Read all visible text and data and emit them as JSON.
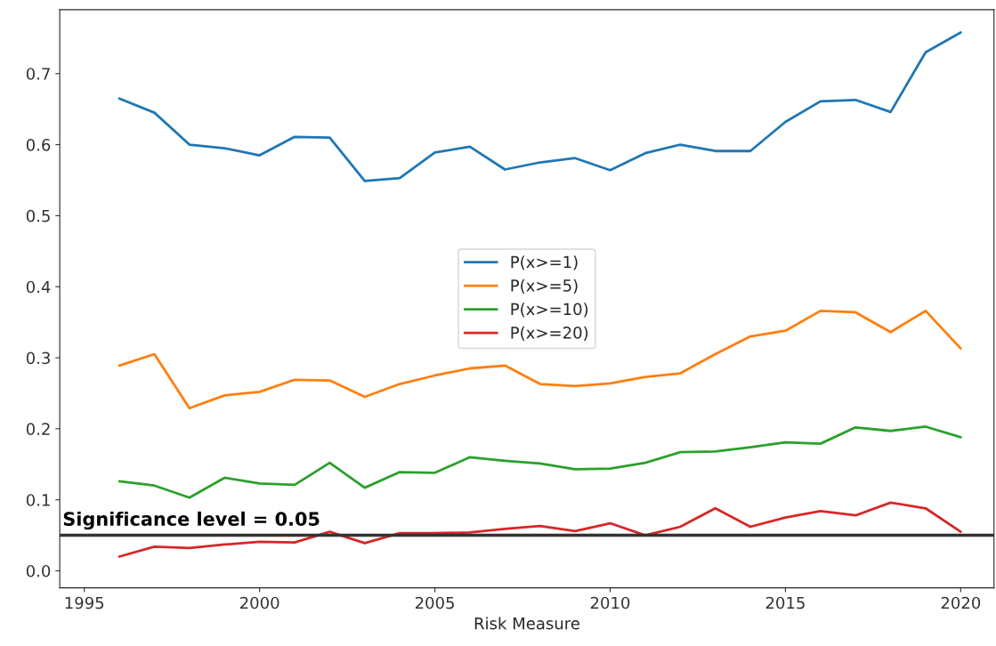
{
  "chart_data": {
    "type": "line",
    "xlabel": "Risk Measure",
    "x": [
      1996,
      1997,
      1998,
      1999,
      2000,
      2001,
      2002,
      2003,
      2004,
      2005,
      2006,
      2007,
      2008,
      2009,
      2010,
      2011,
      2012,
      2013,
      2014,
      2015,
      2016,
      2017,
      2018,
      2019,
      2020
    ],
    "series": [
      {
        "name": "P(x>=1)",
        "color": "#1f77b4",
        "values": [
          0.665,
          0.645,
          0.6,
          0.595,
          0.585,
          0.611,
          0.61,
          0.549,
          0.553,
          0.589,
          0.597,
          0.565,
          0.575,
          0.581,
          0.564,
          0.588,
          0.6,
          0.591,
          0.591,
          0.632,
          0.661,
          0.663,
          0.646,
          0.73,
          0.758
        ]
      },
      {
        "name": "P(x>=5)",
        "color": "#ff7f0e",
        "values": [
          0.289,
          0.305,
          0.229,
          0.247,
          0.252,
          0.269,
          0.268,
          0.245,
          0.263,
          0.275,
          0.285,
          0.289,
          0.263,
          0.26,
          0.264,
          0.273,
          0.278,
          0.305,
          0.33,
          0.338,
          0.366,
          0.364,
          0.336,
          0.366,
          0.313
        ]
      },
      {
        "name": "P(x>=10)",
        "color": "#2ca02c",
        "values": [
          0.126,
          0.12,
          0.103,
          0.131,
          0.123,
          0.121,
          0.152,
          0.117,
          0.139,
          0.138,
          0.16,
          0.155,
          0.151,
          0.143,
          0.144,
          0.152,
          0.167,
          0.168,
          0.174,
          0.181,
          0.179,
          0.202,
          0.197,
          0.203,
          0.188
        ]
      },
      {
        "name": "P(x>=20)",
        "color": "#d62728",
        "values": [
          0.02,
          0.034,
          0.032,
          0.037,
          0.041,
          0.04,
          0.055,
          0.039,
          0.053,
          0.053,
          0.054,
          0.059,
          0.063,
          0.056,
          0.067,
          0.05,
          0.062,
          0.088,
          0.062,
          0.075,
          0.084,
          0.078,
          0.096,
          0.088,
          0.055
        ]
      }
    ],
    "xlim": [
      1994.3,
      2020.95
    ],
    "xticks": [
      1995,
      2000,
      2005,
      2010,
      2015,
      2020
    ],
    "ylim": [
      -0.024,
      0.79
    ],
    "yticks": [
      {
        "value": 0,
        "label": "0.0"
      },
      0.1,
      0.2,
      0.3,
      0.4,
      0.5,
      0.6,
      0.7
    ],
    "ref_lines": [
      {
        "axis": "y",
        "value": 0.05,
        "label": "Significance level = 0.05",
        "color": "#333333"
      }
    ],
    "legend": "center",
    "grid": false
  }
}
